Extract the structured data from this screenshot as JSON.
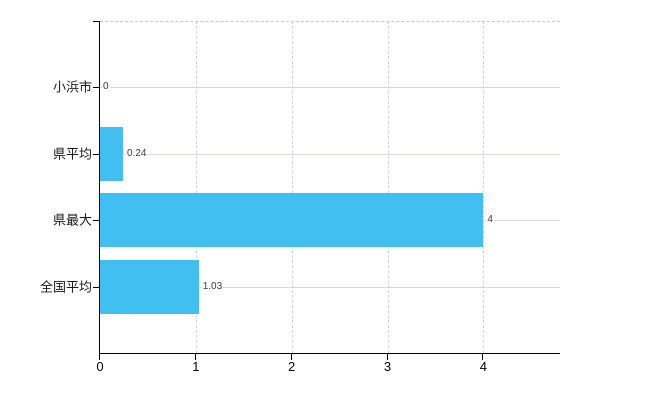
{
  "chart_data": {
    "type": "bar",
    "orientation": "horizontal",
    "title": "",
    "xlabel": "",
    "ylabel": "",
    "categories": [
      "小浜市",
      "県平均",
      "県最大",
      "全国平均"
    ],
    "values": [
      0,
      0.24,
      4,
      1.03
    ],
    "value_labels": [
      "0",
      "0.24",
      "4",
      "1.03"
    ],
    "x_ticks": [
      0,
      1,
      2,
      3,
      4
    ],
    "x_tick_labels": [
      "0",
      "1",
      "2",
      "3",
      "4"
    ],
    "xlim": [
      0,
      4.8
    ],
    "grid": {
      "horizontal_style": "solid",
      "vertical_style": "dashed",
      "top_border_style": "dashed"
    },
    "legend": "none",
    "colors": {
      "bar": "#41bff0",
      "axis": "#000000",
      "horizontal_grid": "#d6dbd6",
      "vertical_grid": "#d4d0d8",
      "top_border": "#c9c9c9",
      "category_label": "#1a1a1a",
      "value_label": "#3c3c3c",
      "background": "#ffffff"
    }
  }
}
